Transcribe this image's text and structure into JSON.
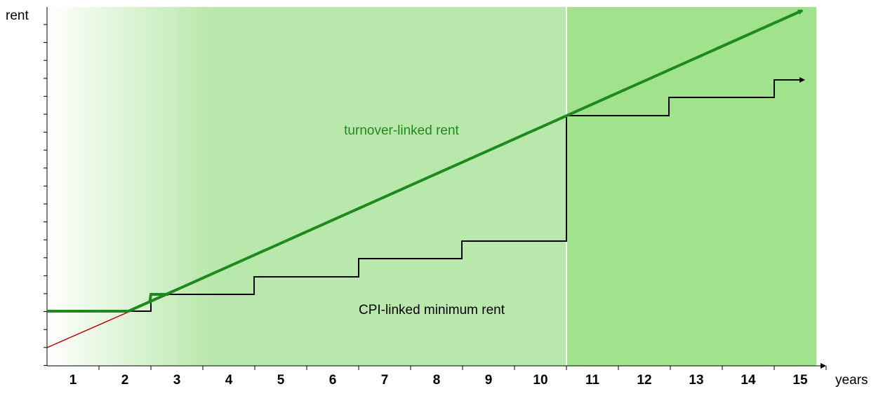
{
  "y_axis_label": "rent",
  "x_axis_label": "years",
  "years": [
    "1",
    "2",
    "3",
    "4",
    "5",
    "6",
    "7",
    "8",
    "9",
    "10",
    "11",
    "12",
    "13",
    "14",
    "15"
  ],
  "annotations": {
    "turnover": "turnover-linked rent",
    "cpi": "CPI-linked minimum rent"
  }
}
